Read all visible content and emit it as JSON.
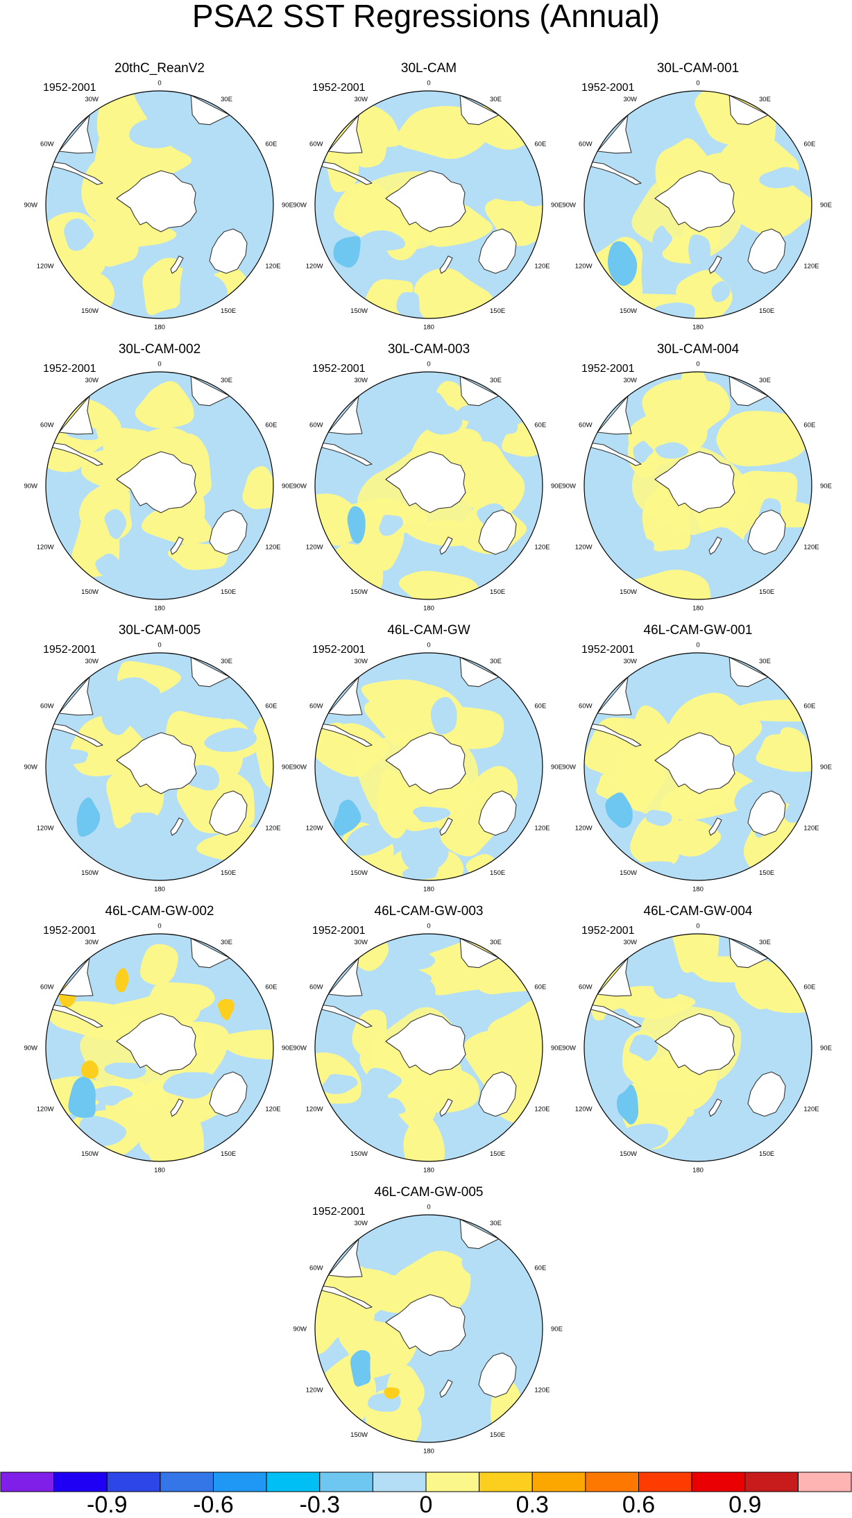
{
  "title": "PSA2 SST Regressions (Annual)",
  "period": "1952-2001",
  "longitude_labels": [
    "0",
    "30E",
    "60E",
    "90E",
    "120E",
    "150E",
    "180",
    "150W",
    "120W",
    "90W",
    "60W",
    "30W"
  ],
  "panels": [
    {
      "title": "20thC_ReanV2",
      "period": "1952-2001"
    },
    {
      "title": "30L-CAM",
      "period": "1952-2001"
    },
    {
      "title": "30L-CAM-001",
      "period": "1952-2001"
    },
    {
      "title": "30L-CAM-002",
      "period": "1952-2001"
    },
    {
      "title": "30L-CAM-003",
      "period": "1952-2001"
    },
    {
      "title": "30L-CAM-004",
      "period": "1952-2001"
    },
    {
      "title": "30L-CAM-005",
      "period": "1952-2001"
    },
    {
      "title": "46L-CAM-GW",
      "period": "1952-2001"
    },
    {
      "title": "46L-CAM-GW-001",
      "period": "1952-2001"
    },
    {
      "title": "46L-CAM-GW-002",
      "period": "1952-2001"
    },
    {
      "title": "46L-CAM-GW-003",
      "period": "1952-2001"
    },
    {
      "title": "46L-CAM-GW-004",
      "period": "1952-2001"
    },
    {
      "title": "46L-CAM-GW-005",
      "period": "1952-2001"
    }
  ],
  "colorbar": {
    "colors": [
      "#7f1fe8",
      "#1f00f5",
      "#2d46e8",
      "#3476e8",
      "#1f97f5",
      "#00bff5",
      "#6ec7f0",
      "#b4def5",
      "#fcf78a",
      "#fccf1f",
      "#fca600",
      "#fc7800",
      "#fc3c00",
      "#eb0000",
      "#c81c1c",
      "#ffb4b4"
    ],
    "labels": [
      {
        "text": "-0.9",
        "boundary_index": 2
      },
      {
        "text": "-0.6",
        "boundary_index": 4
      },
      {
        "text": "-0.3",
        "boundary_index": 6
      },
      {
        "text": "0",
        "boundary_index": 8
      },
      {
        "text": "0.3",
        "boundary_index": 10
      },
      {
        "text": "0.6",
        "boundary_index": 12
      },
      {
        "text": "0.9",
        "boundary_index": 14
      }
    ]
  },
  "colors": {
    "land": "#ffffff",
    "ocean_negative": "#b4def5",
    "ocean_positive": "#fcf78a",
    "strong_negative": "#6ec7f0",
    "strong_positive": "#fccf1f",
    "coast": "#333333"
  }
}
